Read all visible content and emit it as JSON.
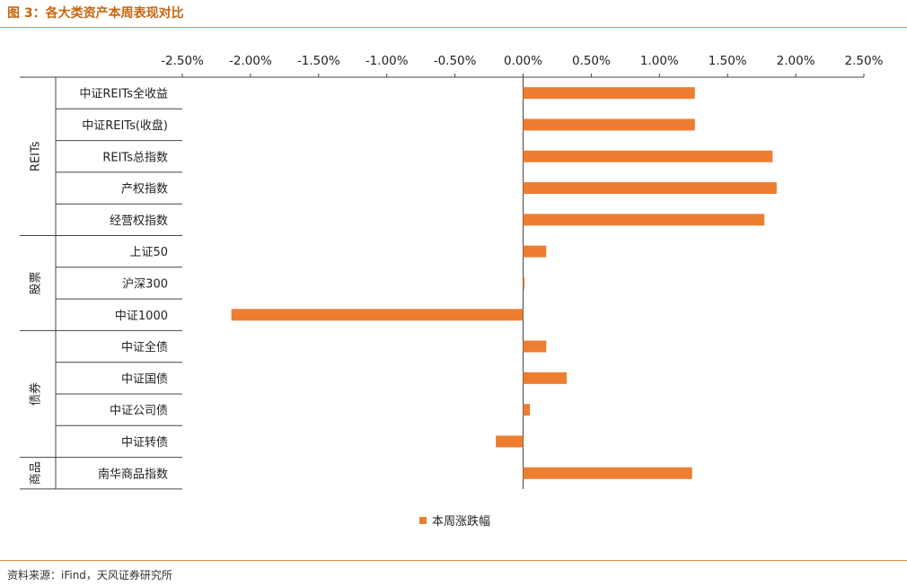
{
  "header": {
    "title": "图 3：各大类资产本周表现对比"
  },
  "footer": {
    "source": "资料来源：iFind，天风证券研究所"
  },
  "chart_data": {
    "type": "bar",
    "orientation": "horizontal",
    "x_ticks": [
      "-2.50%",
      "-2.00%",
      "-1.50%",
      "-1.00%",
      "-0.50%",
      "0.00%",
      "0.50%",
      "1.00%",
      "1.50%",
      "2.00%",
      "2.50%"
    ],
    "xlim": [
      -2.5,
      2.5
    ],
    "categories": [
      "中证REITs全收益",
      "中证REITs(收盘)",
      "REITs总指数",
      "产权指数",
      "经营权指数",
      "上证50",
      "沪深300",
      "中证1000",
      "中证全债",
      "中证国债",
      "中证公司债",
      "中证转债",
      "南华商品指数"
    ],
    "groups": [
      {
        "label": "REITs",
        "start": 0,
        "end": 4
      },
      {
        "label": "股票",
        "start": 5,
        "end": 7
      },
      {
        "label": "债券",
        "start": 8,
        "end": 11
      },
      {
        "label": "商品",
        "start": 12,
        "end": 12
      }
    ],
    "series": [
      {
        "name": "本周涨跌幅",
        "color": "#ed7d31",
        "values": [
          1.26,
          1.26,
          1.83,
          1.86,
          1.77,
          0.17,
          0.01,
          -2.14,
          0.17,
          0.32,
          0.05,
          -0.2,
          1.24
        ]
      }
    ],
    "legend_position": "bottom",
    "grid": false
  }
}
